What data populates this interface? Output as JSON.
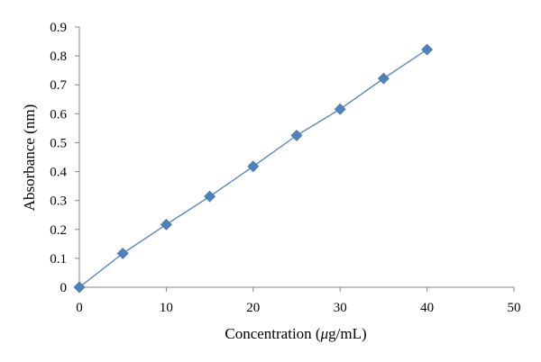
{
  "chart_data": {
    "type": "line",
    "xlabel_pre": "Concentration (",
    "xlabel_mu": "μ",
    "xlabel_post": "g/mL)",
    "ylabel": "Absorbance (nm)",
    "xlim": [
      0,
      50
    ],
    "ylim": [
      0,
      0.9
    ],
    "x_ticks": [
      0,
      10,
      20,
      30,
      40,
      50
    ],
    "y_ticks": [
      0,
      0.1,
      0.2,
      0.3,
      0.4,
      0.5,
      0.6,
      0.7,
      0.8,
      0.9
    ],
    "grid": false,
    "series": [
      {
        "x": [
          0,
          5,
          10,
          15,
          20,
          25,
          30,
          35,
          40
        ],
        "y": [
          0,
          0.117,
          0.217,
          0.314,
          0.418,
          0.525,
          0.616,
          0.722,
          0.822
        ],
        "color": "#4f81bd",
        "marker": "diamond"
      }
    ]
  }
}
